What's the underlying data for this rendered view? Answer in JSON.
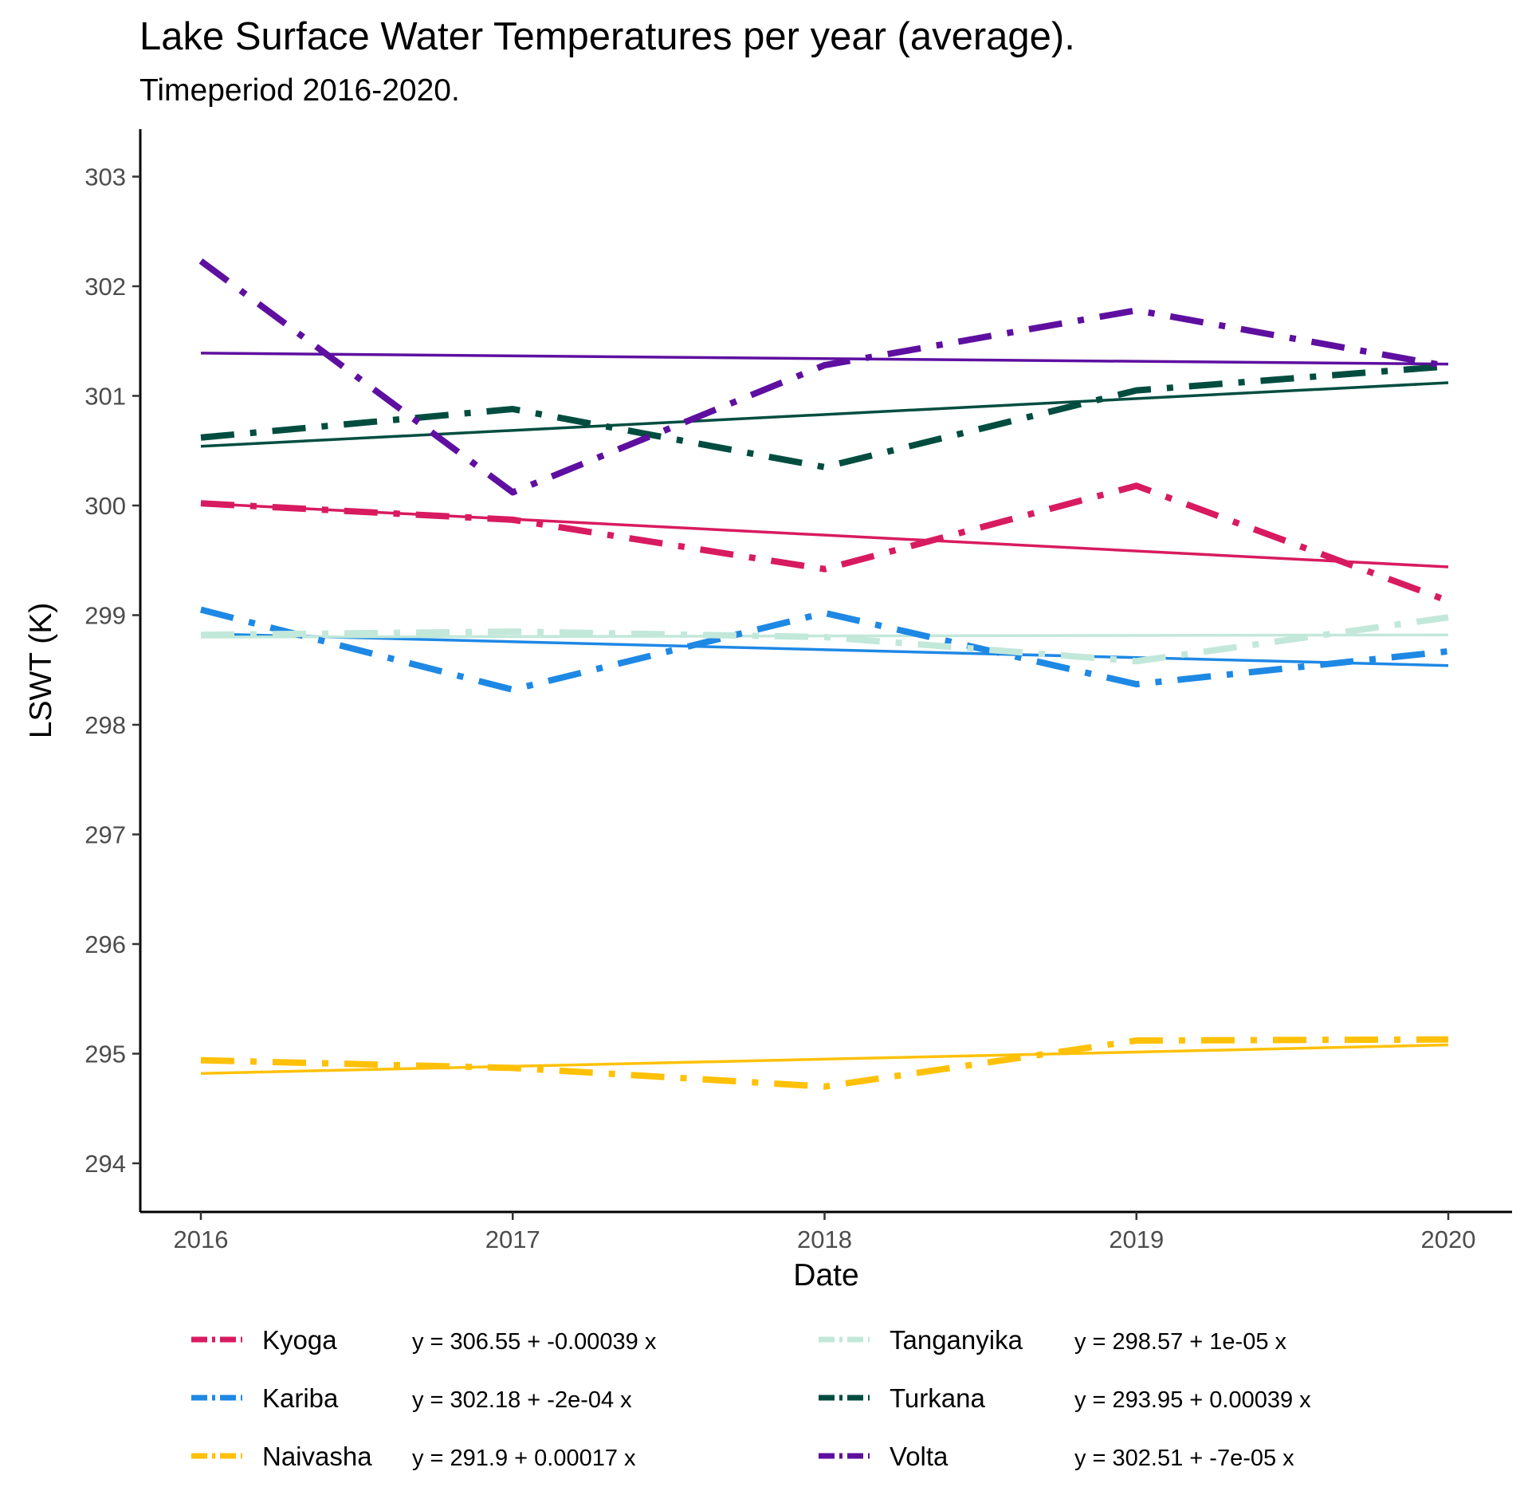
{
  "chart_data": {
    "type": "line",
    "title": "Lake Surface Water Temperatures per year (average).",
    "subtitle": "Timeperiod 2016-2020.",
    "xlabel": "Date",
    "ylabel": "LSWT (K)",
    "x": [
      2016,
      2017,
      2018,
      2019,
      2020
    ],
    "x_ticks": [
      "2016",
      "2017",
      "2018",
      "2019",
      "2020"
    ],
    "y_ticks": [
      "294",
      "295",
      "296",
      "297",
      "298",
      "299",
      "300",
      "301",
      "302",
      "303"
    ],
    "xlim": [
      2015.8,
      2020.2
    ],
    "ylim": [
      293.55,
      303.45
    ],
    "grid": false,
    "legend_position": "bottom",
    "series": [
      {
        "name": "Kyoga",
        "color": "#D81B60",
        "equation": "y = 306.55 + -0.00039 x",
        "values": [
          300.02,
          299.87,
          299.42,
          300.18,
          299.13
        ],
        "trend": [
          300.02,
          299.44
        ]
      },
      {
        "name": "Kariba",
        "color": "#1E88E5",
        "equation": "y = 302.18 + -2e-04 x",
        "values": [
          299.05,
          298.32,
          299.02,
          298.37,
          298.67
        ],
        "trend": [
          298.83,
          298.54
        ]
      },
      {
        "name": "Naivasha",
        "color": "#FFC107",
        "equation": "y = 291.9 + 0.00017 x",
        "values": [
          294.94,
          294.87,
          294.7,
          295.12,
          295.13
        ],
        "trend": [
          294.82,
          295.08
        ]
      },
      {
        "name": "Tanganyika",
        "color": "#C2E8DA",
        "equation": "y = 298.57 + 1e-05 x",
        "values": [
          298.82,
          298.85,
          298.8,
          298.58,
          298.98
        ],
        "trend": [
          298.8,
          298.82
        ]
      },
      {
        "name": "Turkana",
        "color": "#004D40",
        "equation": "y = 293.95 + 0.00039 x",
        "values": [
          300.62,
          300.88,
          300.35,
          301.05,
          301.27
        ],
        "trend": [
          300.54,
          301.12
        ]
      },
      {
        "name": "Volta",
        "color": "#5E0FA0",
        "equation": "y = 302.51 + -7e-05 x",
        "values": [
          302.23,
          300.12,
          301.28,
          301.78,
          301.27
        ],
        "trend": [
          301.39,
          301.29
        ]
      }
    ]
  }
}
